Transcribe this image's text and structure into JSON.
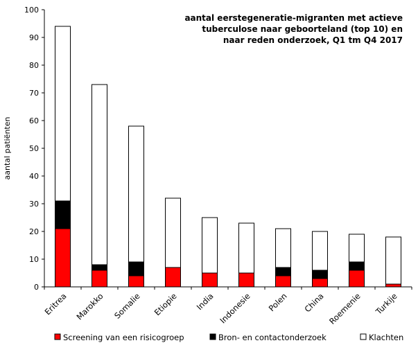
{
  "chart_data": {
    "type": "bar",
    "stacked": true,
    "title": "aantal eerstegeneratie-migranten met actieve tuberculose naar geboorteland (top 10) en naar reden onderzoek, Q1 tm Q4 2017",
    "title_lines": [
      "aantal eerstegeneratie-migranten met actieve",
      "tuberculose naar geboorteland (top 10) en",
      "naar reden onderzoek, Q1 tm Q4 2017"
    ],
    "xlabel": "",
    "ylabel": "aantal patiënten",
    "ylim": [
      0,
      100
    ],
    "yticks": [
      0,
      10,
      20,
      30,
      40,
      50,
      60,
      70,
      80,
      90,
      100
    ],
    "grid": false,
    "legend_position": "bottom",
    "categories": [
      "Eritrea",
      "Marokko",
      "Somalie",
      "Etiopie",
      "India",
      "Indonesie",
      "Polen",
      "China",
      "Roemenie",
      "Turkije"
    ],
    "series": [
      {
        "name": "Screening van een risicogroep",
        "color": "#ff0000",
        "values": [
          21,
          6,
          4,
          7,
          5,
          5,
          4,
          3,
          6,
          1
        ]
      },
      {
        "name": "Bron- en contactonderzoek",
        "color": "#000000",
        "values": [
          10,
          2,
          5,
          0,
          0,
          0,
          3,
          3,
          3,
          0
        ]
      },
      {
        "name": "Klachten",
        "color": "#ffffff",
        "values": [
          63,
          65,
          49,
          25,
          20,
          18,
          14,
          14,
          10,
          17
        ]
      }
    ]
  }
}
